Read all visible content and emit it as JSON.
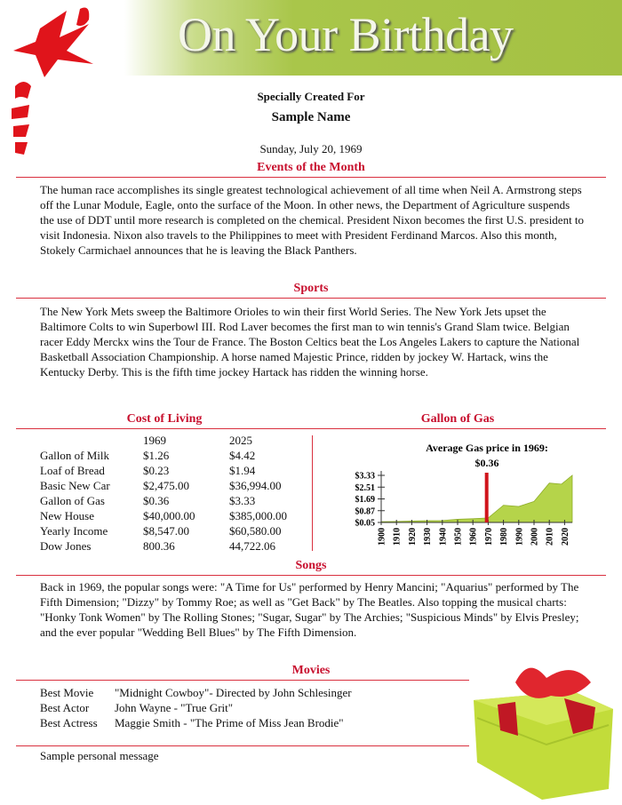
{
  "header": {
    "title": "On Your Birthday",
    "subtitle": "Specially Created For",
    "name": "Sample Name",
    "date": "Sunday, July 20, 1969"
  },
  "events": {
    "heading": "Events of the Month",
    "text": "The human race accomplishes its single greatest technological achievement of all time when Neil A. Armstrong steps off the Lunar Module, Eagle, onto the surface of the Moon. In other news, the Department of Agriculture suspends the use of DDT until more research is completed on the chemical. President Nixon becomes the first U.S. president to visit Indonesia. Nixon also travels to the Philippines to meet with President Ferdinand Marcos. Also this month, Stokely Carmichael announces that he is leaving the Black Panthers."
  },
  "sports": {
    "heading": "Sports",
    "text": "The New York Mets sweep the Baltimore Orioles to win their first World Series. The New York Jets upset the Baltimore Colts to win Superbowl III.  Rod Laver becomes the first man to win tennis's Grand Slam twice. Belgian racer Eddy Merckx wins the Tour de France.  The Boston Celtics beat the Los Angeles Lakers to capture the National Basketball Association Championship.  A horse named Majestic Prince, ridden by jockey W. Hartack, wins the Kentucky Derby. This is the fifth time jockey Hartack has ridden the winning horse."
  },
  "cost": {
    "heading": "Cost of Living",
    "columns": [
      "",
      "1969",
      "2025"
    ],
    "rows": [
      [
        "Gallon of Milk",
        "$1.26",
        "$4.42"
      ],
      [
        "Loaf of Bread",
        "$0.23",
        "$1.94"
      ],
      [
        "Basic New Car",
        "$2,475.00",
        "$36,994.00"
      ],
      [
        "Gallon of Gas",
        "$0.36",
        "$3.33"
      ],
      [
        "New House",
        "$40,000.00",
        "$385,000.00"
      ],
      [
        "Yearly Income",
        "$8,547.00",
        "$60,580.00"
      ],
      [
        "Dow Jones",
        "800.36",
        "44,722.06"
      ]
    ]
  },
  "gas": {
    "heading": "Gallon of Gas"
  },
  "chart_data": {
    "type": "area",
    "title": "Average Gas price in 1969:",
    "highlight_label": "$0.36",
    "highlight_year": 1969,
    "highlight_color": "#d0141c",
    "fill_color": "#b5d44a",
    "y_ticks": [
      "$0.05",
      "$0.87",
      "$1.69",
      "$2.51",
      "$3.33"
    ],
    "ylim": [
      0.05,
      3.33
    ],
    "x_ticks": [
      "1900",
      "1910",
      "1920",
      "1930",
      "1940",
      "1950",
      "1960",
      "1970",
      "1980",
      "1990",
      "2000",
      "2010",
      "2020"
    ],
    "x": [
      1900,
      1910,
      1920,
      1930,
      1940,
      1950,
      1960,
      1969,
      1970,
      1980,
      1990,
      2000,
      2010,
      2018,
      2025
    ],
    "values": [
      0.1,
      0.12,
      0.15,
      0.17,
      0.18,
      0.27,
      0.31,
      0.36,
      0.36,
      1.25,
      1.16,
      1.51,
      2.79,
      2.72,
      3.33
    ]
  },
  "songs": {
    "heading": "Songs",
    "text": "Back in 1969, the popular songs were: \"A Time for Us\" performed by Henry Mancini; \"Aquarius\" performed by The Fifth Dimension; \"Dizzy\" by Tommy Roe; as well as \"Get Back\" by The Beatles. Also topping the musical charts: \"Honky Tonk Women\" by The Rolling Stones; \"Sugar, Sugar\" by The Archies; \"Suspicious Minds\" by Elvis Presley; and the ever popular \"Wedding Bell Blues\" by The Fifth Dimension."
  },
  "movies": {
    "heading": "Movies",
    "rows": [
      [
        "Best Movie",
        "\"Midnight Cowboy\"- Directed by John Schlesinger"
      ],
      [
        "Best Actor",
        "John Wayne - \"True Grit\""
      ],
      [
        "Best Actress",
        "Maggie Smith - \"The Prime of Miss Jean Brodie\""
      ]
    ]
  },
  "message": "Sample personal message"
}
